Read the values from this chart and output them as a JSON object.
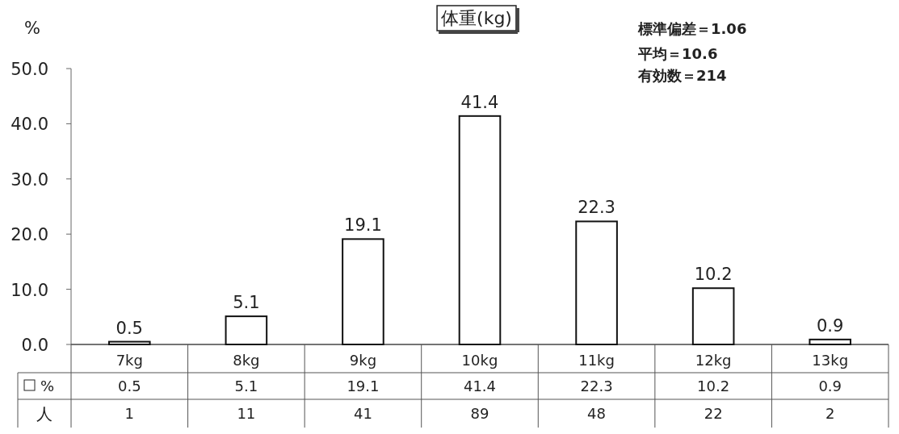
{
  "chart_data": {
    "type": "bar",
    "title": "体重(kg)",
    "ylabel": "%",
    "categories": [
      "7kg",
      "8kg",
      "9kg",
      "10kg",
      "11kg",
      "12kg",
      "13kg"
    ],
    "series": [
      {
        "name": "%",
        "color": "#ffffff",
        "values": [
          0.5,
          5.1,
          19.1,
          41.4,
          22.3,
          10.2,
          0.9
        ],
        "value_labels": [
          "0.5",
          "5.1",
          "19.1",
          "41.4",
          "22.3",
          "10.2",
          "0.9"
        ]
      }
    ],
    "ylim": [
      0,
      50
    ],
    "yticks": [
      {
        "value": 0,
        "label": "0.0"
      },
      {
        "value": 10,
        "label": "10.0"
      },
      {
        "value": 20,
        "label": "20.0"
      },
      {
        "value": 30,
        "label": "30.0"
      },
      {
        "value": 40,
        "label": "40.0"
      },
      {
        "value": 50,
        "label": "50.0"
      }
    ],
    "legend": "bottom",
    "grid": false,
    "annotations": [
      "標準偏差＝1.06",
      "平均＝10.6",
      "有効数＝214",
      "人",
      "0.5",
      "5.1",
      "19.1",
      "41.4",
      "22.3",
      "10.2",
      "0.9",
      "1",
      "11",
      "41",
      "89",
      "48",
      "22",
      "2"
    ]
  }
}
